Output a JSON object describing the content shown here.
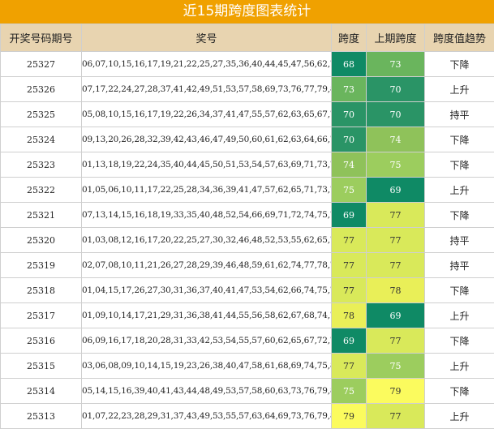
{
  "title": "近15期跨度图表统计",
  "headers": {
    "period": "开奖号码期号",
    "numbers": "奖号",
    "span": "跨度",
    "prev_span": "上期跨度",
    "trend": "跨度值趋势"
  },
  "colors": {
    "title_bg": "#f0a100",
    "header_bg": "#e8d4b0",
    "span_69": "#0f8a65",
    "span_70": "#2a9466",
    "span_73": "#6ab55d",
    "span_74": "#8fc25a",
    "span_75": "#9ccd5e",
    "span_77": "#d9e95a",
    "span_78": "#e9ef58",
    "span_79": "#fbfb5e"
  },
  "rows": [
    {
      "period": "25327",
      "numbers": "06,07,10,15,16,17,19,21,22,25,27,35,36,40,44,45,47,56,62,74",
      "span": "68",
      "prev_span": "73",
      "trend": "下降"
    },
    {
      "period": "25326",
      "numbers": "07,17,22,24,27,28,37,41,42,49,51,53,57,58,69,73,76,77,79,80",
      "span": "73",
      "prev_span": "70",
      "trend": "上升"
    },
    {
      "period": "25325",
      "numbers": "05,08,10,15,16,17,19,22,26,34,37,41,47,55,57,62,63,65,67,75",
      "span": "70",
      "prev_span": "70",
      "trend": "持平"
    },
    {
      "period": "25324",
      "numbers": "09,13,20,26,28,32,39,42,43,46,47,49,50,60,61,62,63,64,66,79",
      "span": "70",
      "prev_span": "74",
      "trend": "下降"
    },
    {
      "period": "25323",
      "numbers": "01,13,18,19,22,24,35,40,44,45,50,51,53,54,57,63,69,71,73,75",
      "span": "74",
      "prev_span": "75",
      "trend": "下降"
    },
    {
      "period": "25322",
      "numbers": "01,05,06,10,11,17,22,25,28,34,36,39,41,47,57,62,65,71,73,76",
      "span": "75",
      "prev_span": "69",
      "trend": "上升"
    },
    {
      "period": "25321",
      "numbers": "07,13,14,15,16,18,19,33,35,40,48,52,54,66,69,71,72,74,75,76",
      "span": "69",
      "prev_span": "77",
      "trend": "下降"
    },
    {
      "period": "25320",
      "numbers": "01,03,08,12,16,17,20,22,25,27,30,32,46,48,52,53,55,62,65,78",
      "span": "77",
      "prev_span": "77",
      "trend": "持平"
    },
    {
      "period": "25319",
      "numbers": "02,07,08,10,11,21,26,27,28,29,39,46,48,59,61,62,74,77,78,79",
      "span": "77",
      "prev_span": "77",
      "trend": "持平"
    },
    {
      "period": "25318",
      "numbers": "01,04,15,17,26,27,30,31,36,37,40,41,47,53,54,62,66,74,75,78",
      "span": "77",
      "prev_span": "78",
      "trend": "下降"
    },
    {
      "period": "25317",
      "numbers": "01,09,10,14,17,21,29,31,36,38,41,44,55,56,58,62,67,68,74,79",
      "span": "78",
      "prev_span": "69",
      "trend": "上升"
    },
    {
      "period": "25316",
      "numbers": "06,09,16,17,18,20,28,31,33,42,53,54,55,57,60,62,65,67,72,75",
      "span": "69",
      "prev_span": "77",
      "trend": "下降"
    },
    {
      "period": "25315",
      "numbers": "03,06,08,09,10,14,15,19,23,26,38,40,47,58,61,68,69,74,75,80",
      "span": "77",
      "prev_span": "75",
      "trend": "上升"
    },
    {
      "period": "25314",
      "numbers": "05,14,15,16,39,40,41,43,44,48,49,53,57,58,60,63,73,76,79,80",
      "span": "75",
      "prev_span": "79",
      "trend": "下降"
    },
    {
      "period": "25313",
      "numbers": "01,07,22,23,28,29,31,37,43,49,53,55,57,63,64,69,73,76,79,80",
      "span": "79",
      "prev_span": "77",
      "trend": "上升"
    }
  ]
}
